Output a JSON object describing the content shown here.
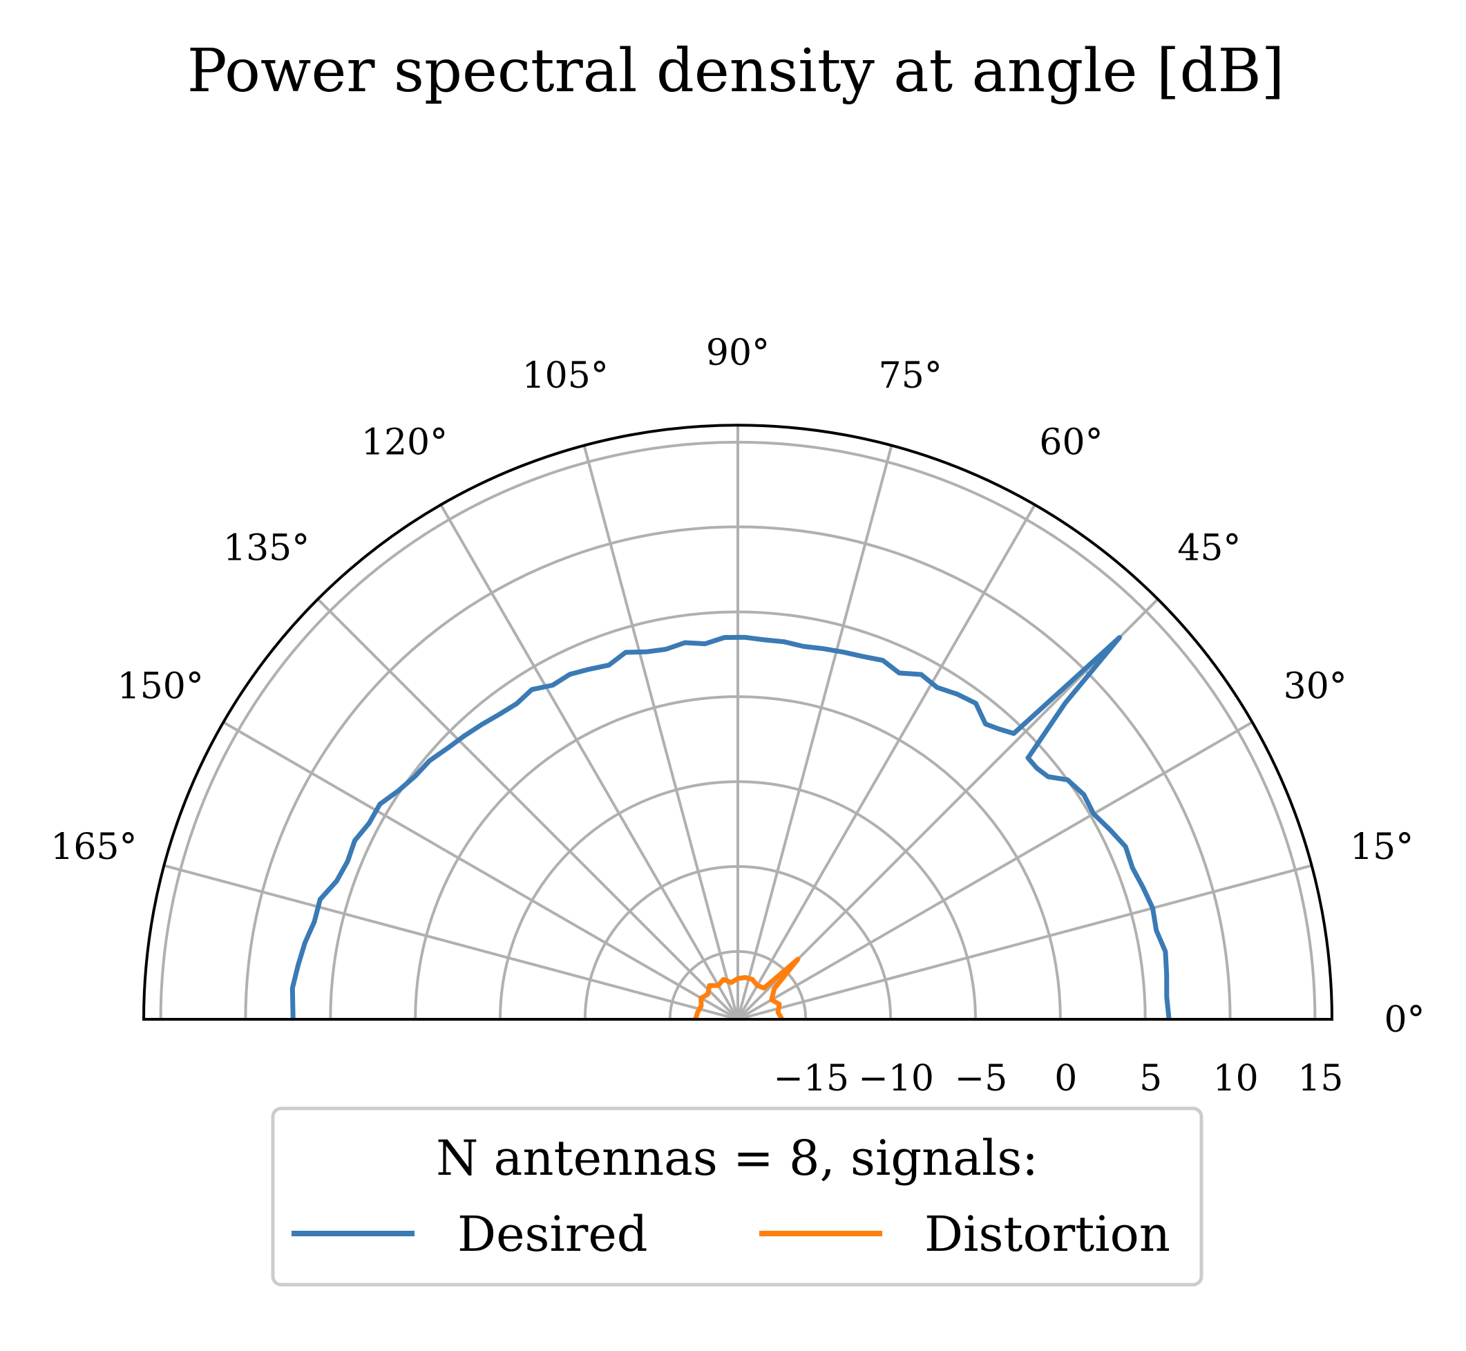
{
  "chart_data": {
    "type": "line",
    "projection": "polar",
    "title": "Power spectral density at angle [dB]",
    "theta_range_deg": [
      0,
      180
    ],
    "r_range_db": [
      -19,
      16
    ],
    "theta_ticks": [
      "0°",
      "15°",
      "30°",
      "45°",
      "60°",
      "75°",
      "90°",
      "105°",
      "120°",
      "135°",
      "150°",
      "165°"
    ],
    "theta_tick_values": [
      0,
      15,
      30,
      45,
      60,
      75,
      90,
      105,
      120,
      135,
      150,
      165
    ],
    "r_ticks": [
      "−15",
      "−10",
      "−5",
      "0",
      "5",
      "10",
      "15"
    ],
    "r_tick_values": [
      -15,
      -10,
      -5,
      0,
      5,
      10,
      15
    ],
    "grid": true,
    "legend": {
      "title": "N antennas = 8, signals:",
      "placement": "bottom-center",
      "ncol": 2
    },
    "series": [
      {
        "name": "Desired",
        "color": "#3a7ab5",
        "theta": [
          0,
          3,
          6,
          9,
          12,
          15,
          18,
          21,
          24,
          27,
          30,
          33,
          36,
          38,
          40,
          42,
          44,
          45,
          46,
          48,
          50,
          53,
          56,
          59,
          62,
          65,
          68,
          71,
          74,
          77,
          80,
          83,
          86,
          89,
          92,
          95,
          98,
          101,
          104,
          107,
          110,
          113,
          116,
          119,
          122,
          125,
          128,
          131,
          134,
          137,
          140,
          143,
          146,
          149,
          152,
          155,
          158,
          161,
          164,
          167,
          170,
          173,
          176,
          180
        ],
        "values": [
          6.4,
          6.3,
          6.4,
          6.5,
          6.2,
          6.3,
          6.1,
          5.9,
          6.0,
          5.6,
          5.2,
          5.3,
          5.0,
          4.2,
          4.0,
          4.0,
          7.8,
          12.8,
          4.4,
          4.0,
          3.7,
          4.3,
          4.1,
          3.8,
          4.0,
          3.5,
          3.8,
          3.6,
          3.5,
          3.4,
          3.3,
          3.4,
          3.4,
          3.5,
          3.5,
          3.2,
          3.4,
          3.2,
          3.3,
          3.6,
          3.2,
          3.4,
          3.6,
          3.5,
          3.9,
          3.7,
          3.8,
          4.0,
          4.2,
          4.4,
          4.7,
          4.8,
          5.1,
          5.6,
          5.6,
          5.9,
          5.8,
          6.0,
          6.6,
          6.6,
          6.9,
          7.1,
          7.3,
          7.2
        ]
      },
      {
        "name": "Distortion",
        "color": "#ff7f0e",
        "theta": [
          0,
          10,
          20,
          30,
          40,
          45,
          50,
          60,
          70,
          80,
          90,
          100,
          110,
          120,
          130,
          140,
          150,
          160,
          170,
          180
        ],
        "values": [
          -16.4,
          -16.6,
          -16.4,
          -16.7,
          -16.2,
          -14.0,
          -16.6,
          -16.7,
          -16.5,
          -16.5,
          -16.6,
          -16.8,
          -16.5,
          -16.7,
          -16.4,
          -16.7,
          -16.5,
          -16.7,
          -16.6,
          -16.5
        ]
      }
    ]
  }
}
